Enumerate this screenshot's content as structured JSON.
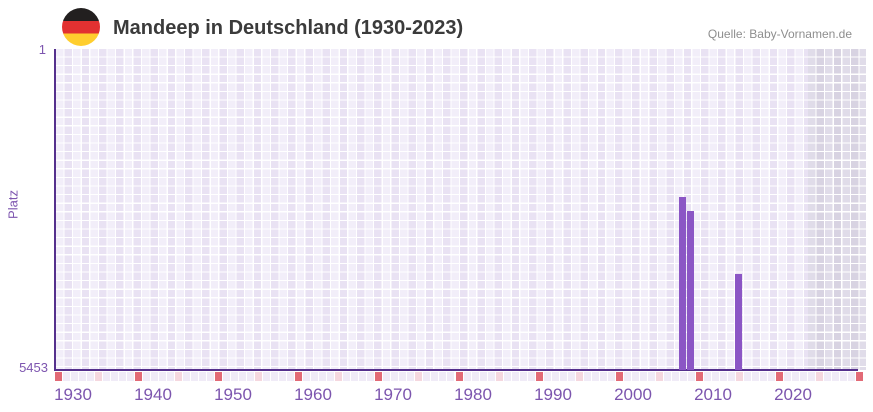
{
  "header": {
    "title": "Mandeep in Deutschland (1930-2023)",
    "source": "Quelle: Baby-Vornamen.de",
    "flag_icon": "german-flag-icon"
  },
  "chart_data": {
    "type": "bar",
    "title": "Mandeep in Deutschland (1930-2023)",
    "xlabel": "",
    "ylabel": "Platz",
    "y_axis": {
      "top_tick": "1",
      "bottom_tick": "5453",
      "min": 1,
      "max": 5453,
      "inverted": true
    },
    "x_axis": {
      "range": [
        1930,
        2023
      ],
      "tick_labels": [
        "1930",
        "1940",
        "1950",
        "1960",
        "1970",
        "1980",
        "1990",
        "2000",
        "2010",
        "2020"
      ],
      "minor_tick_interval_years": 5,
      "shaded_region_after_year": 2023
    },
    "grid": "checkered",
    "legend": "none",
    "points": [
      {
        "year": 2008,
        "rank": 2520
      },
      {
        "year": 2009,
        "rank": 2745
      },
      {
        "year": 2015,
        "rank": 3825
      }
    ]
  },
  "colors": {
    "bar": "#8b56c5",
    "axis_line": "#55308d",
    "tick_text": "#7c55ae",
    "grid_light": "#f2eef9",
    "grid_dark": "#e9e2f3",
    "grid_future_light": "#e0dce9",
    "grid_future_dark": "#d8d3e2",
    "decade_marker": "#e26a76",
    "half_decade_marker": "#f5d7de",
    "minor_marker": "#f0ebf7",
    "title_text": "#3b3b3b",
    "source_text": "#8e8e8e",
    "flag_black": "#221f1f",
    "flag_red": "#e23131",
    "flag_gold": "#ffce2e"
  }
}
